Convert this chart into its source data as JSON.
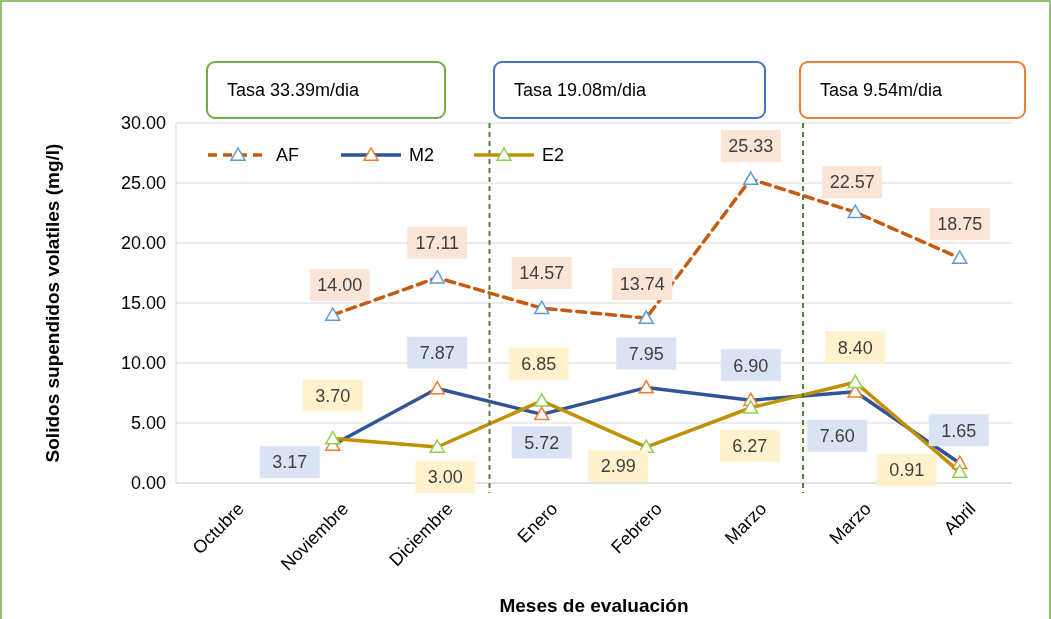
{
  "chart_data": {
    "type": "line",
    "xlabel": "Meses de evaluación",
    "ylabel": "Solidos supendidos volatiles (mg/l)",
    "categories": [
      "Octubre",
      "Noviembre",
      "Diciembre",
      "Enero",
      "Febrero",
      "Marzo",
      "Marzo",
      "Abril"
    ],
    "series": [
      {
        "name": "AF",
        "color": "#c55a11",
        "line_style": "dashed",
        "values": [
          null,
          14.0,
          17.11,
          14.57,
          13.74,
          25.33,
          22.57,
          18.75
        ],
        "value_labels": [
          null,
          "14.00",
          "17.11",
          "14.57",
          "13.74",
          "25.33",
          "22.57",
          "18.75"
        ]
      },
      {
        "name": "M2",
        "color": "#2f5597",
        "line_style": "solid",
        "values": [
          null,
          3.17,
          7.87,
          5.72,
          7.95,
          6.9,
          7.6,
          1.65
        ],
        "value_labels": [
          null,
          "3.17",
          "7.87",
          "5.72",
          "7.95",
          "6.90",
          "7.60",
          "1.65"
        ]
      },
      {
        "name": "E2",
        "color": "#bf9000",
        "line_style": "solid",
        "values": [
          null,
          3.7,
          3.0,
          6.85,
          2.99,
          6.27,
          8.4,
          0.91
        ],
        "value_labels": [
          null,
          "3.70",
          "3.00",
          "6.85",
          "2.99",
          "6.27",
          "8.40",
          "0.91"
        ]
      }
    ],
    "ylim": [
      0,
      30
    ],
    "yticks": [
      {
        "value": 0,
        "label": "0.00"
      },
      {
        "value": 5,
        "label": "5.00"
      },
      {
        "value": 10,
        "label": "10.00"
      },
      {
        "value": 15,
        "label": "15.00"
      },
      {
        "value": 20,
        "label": "20.00"
      },
      {
        "value": 25,
        "label": "25.00"
      },
      {
        "value": 30,
        "label": "30.00"
      }
    ],
    "grid": "y",
    "legend": "top left",
    "marker": "triangle",
    "ref_lines": [
      {
        "axis": "x",
        "value": "Diciembre",
        "color": "#548235",
        "line_style": "dashed"
      },
      {
        "axis": "x",
        "value": "Marzo",
        "color": "#548235",
        "line_style": "dashed"
      }
    ],
    "annotations": [
      "Tasa 33.39m/dia",
      "Tasa 19.08m/dia",
      "Tasa 9.54m/dia"
    ]
  }
}
